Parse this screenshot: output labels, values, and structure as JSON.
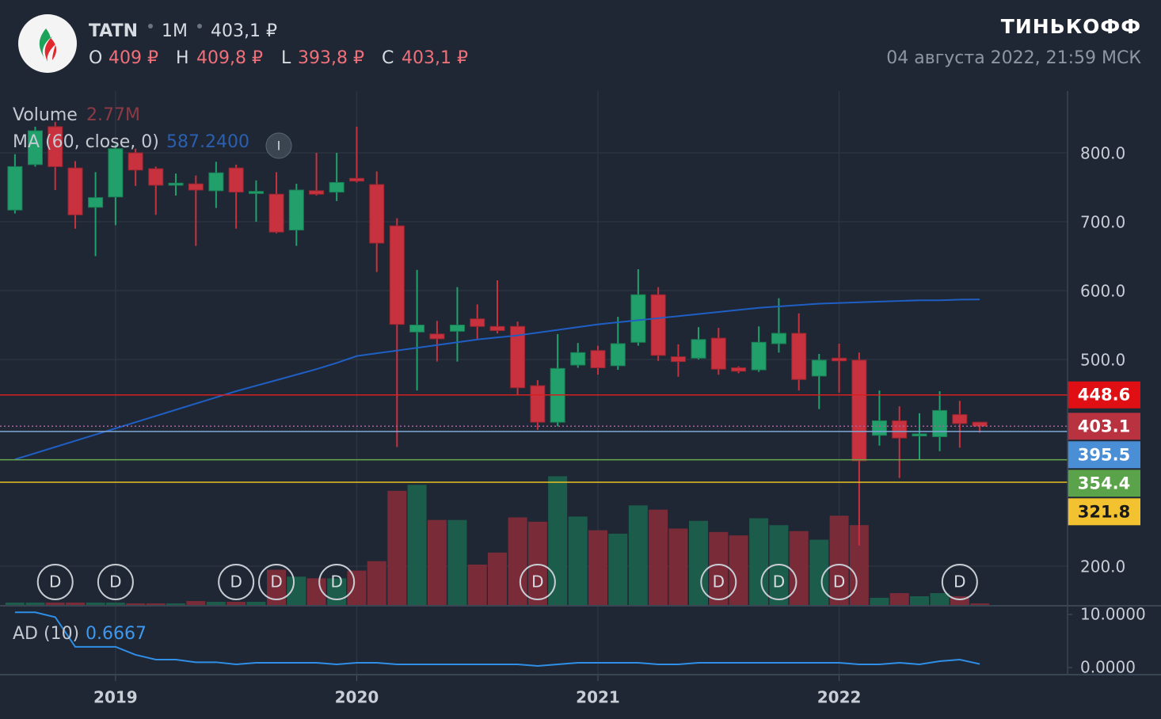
{
  "header": {
    "ticker": "TATN",
    "interval": "1M",
    "price": "403,1 ₽",
    "o_label": "O",
    "o": "409 ₽",
    "h_label": "H",
    "h": "409,8 ₽",
    "l_label": "L",
    "l": "393,8 ₽",
    "c_label": "C",
    "c": "403,1 ₽",
    "brand": "ТИНЬКОФФ",
    "date": "04 августа 2022, 21:59 МСК"
  },
  "info": "I",
  "chart_data": [
    {
      "type": "candlestick",
      "x": [
        2018.583,
        2018.667,
        2018.75,
        2018.833,
        2018.917,
        2019,
        2019.083,
        2019.167,
        2019.25,
        2019.333,
        2019.417,
        2019.5,
        2019.583,
        2019.667,
        2019.75,
        2019.833,
        2019.917,
        2020,
        2020.083,
        2020.167,
        2020.25,
        2020.333,
        2020.417,
        2020.5,
        2020.583,
        2020.667,
        2020.75,
        2020.833,
        2020.917,
        2021,
        2021.083,
        2021.167,
        2021.25,
        2021.333,
        2021.417,
        2021.5,
        2021.583,
        2021.667,
        2021.75,
        2021.833,
        2021.917,
        2022,
        2022.083,
        2022.167,
        2022.25,
        2022.333,
        2022.417,
        2022.5,
        2022.583
      ],
      "open": [
        717,
        783,
        838,
        778,
        721,
        736,
        800,
        777,
        753,
        755,
        745,
        778,
        741,
        740,
        688,
        745,
        743,
        763,
        754,
        694,
        540,
        537,
        541,
        559,
        548,
        548,
        462,
        409,
        492,
        513,
        491,
        525,
        594,
        504,
        502,
        531,
        488,
        485,
        523,
        538,
        476,
        502,
        499,
        390,
        411,
        389,
        388,
        420,
        409
      ],
      "high": [
        798,
        838,
        845,
        788,
        772,
        812,
        806,
        780,
        770,
        767,
        787,
        783,
        760,
        772,
        755,
        800,
        800,
        838,
        773,
        705,
        630,
        556,
        605,
        580,
        615,
        555,
        470,
        537,
        524,
        520,
        562,
        631,
        605,
        522,
        547,
        546,
        490,
        548,
        589,
        567,
        508,
        523,
        510,
        455,
        432,
        422,
        454,
        440,
        409.8
      ],
      "low": [
        712,
        780,
        746,
        690,
        650,
        695,
        752,
        710,
        738,
        665,
        720,
        690,
        700,
        683,
        665,
        738,
        730,
        757,
        627,
        373,
        455,
        497,
        497,
        530,
        538,
        448,
        398,
        403,
        488,
        478,
        485,
        520,
        498,
        475,
        500,
        478,
        480,
        482,
        510,
        455,
        428,
        452,
        230,
        375,
        328,
        355,
        367,
        372,
        393.8
      ],
      "close": [
        780,
        832,
        780,
        710,
        735,
        806,
        775,
        753,
        756,
        746,
        771,
        743,
        744,
        685,
        746,
        740,
        757,
        759,
        669,
        551,
        550,
        530,
        550,
        548,
        542,
        459,
        409,
        487,
        510,
        488,
        523,
        594,
        506,
        497,
        529,
        486,
        483,
        525,
        538,
        471,
        499,
        498,
        353,
        411,
        386,
        392,
        426,
        407,
        403.1
      ],
      "up_color": "#22a06b",
      "down_color": "#c8323f",
      "xlim": [
        2018.521,
        2022.947
      ],
      "xticks": [
        2019,
        2020,
        2021,
        2022
      ],
      "ylim": [
        142.5,
        889.7
      ],
      "yticks": [
        {
          "value": 200,
          "label": "200.0"
        },
        {
          "value": 500,
          "label": "500.0"
        },
        {
          "value": 600,
          "label": "600.0"
        },
        {
          "value": 700,
          "label": "700.0"
        },
        {
          "value": 800,
          "label": "800.0"
        }
      ],
      "grid": true,
      "y2lim": [
        0,
        600
      ],
      "series": [
        {
          "name": "Volume",
          "axis": "y2",
          "up_color": "#1c5c4a",
          "down_color": "#7a2b38",
          "value_label": "2.77M",
          "values": [
            3.7,
            3.7,
            3.7,
            3.7,
            3.7,
            3.7,
            2.8,
            2.8,
            2.8,
            5.5,
            4.6,
            4.6,
            4.6,
            42,
            34,
            32,
            32,
            41,
            52,
            134,
            141,
            100,
            100,
            48,
            62,
            103,
            98,
            151,
            104,
            88,
            84,
            117,
            112,
            90,
            99,
            86,
            82,
            102,
            94,
            87,
            77,
            105,
            94,
            9.3,
            14.8,
            11.1,
            14.8,
            11.1,
            2.77
          ]
        },
        {
          "name": "MA (60, close, 0)",
          "color": "#1f5fc4",
          "value_label": "587.2400",
          "values": [
            355,
            364,
            373,
            382,
            391,
            400,
            409,
            418,
            427,
            436,
            445,
            454,
            462,
            470,
            478,
            486,
            495,
            505,
            509,
            513,
            517,
            521,
            525,
            529,
            532,
            535,
            539,
            543,
            547,
            551,
            554,
            557,
            560,
            563,
            566,
            569,
            572,
            575,
            577,
            579,
            581,
            582,
            583,
            584,
            585,
            586,
            586,
            587,
            587.24
          ]
        }
      ],
      "events": [
        null,
        null,
        "D",
        null,
        null,
        "D",
        null,
        null,
        null,
        null,
        null,
        "D",
        null,
        "D",
        null,
        null,
        "D",
        null,
        null,
        null,
        null,
        null,
        null,
        null,
        null,
        null,
        "D",
        null,
        null,
        null,
        null,
        null,
        null,
        null,
        null,
        "D",
        null,
        null,
        "D",
        null,
        null,
        "D",
        null,
        null,
        null,
        null,
        null,
        "D",
        null
      ],
      "price_line_color": "#b8323f",
      "levels": [
        {
          "value": 448.6,
          "color": "#d42020",
          "label_color": "#e00f14"
        },
        {
          "value": 395.5,
          "color": "#7fa8d6",
          "label_color": "#4a8fd6"
        },
        {
          "value": 354.4,
          "color": "#67a84e",
          "label_color": "#5ba34a"
        },
        {
          "value": 321.8,
          "color": "#e8c21f",
          "label_color": "#f2c230"
        }
      ]
    },
    {
      "type": "line",
      "series": [
        {
          "name": "AD (10)",
          "color": "#2f8ee5",
          "values": [
            10.4,
            10.4,
            9.5,
            3.9,
            3.9,
            3.9,
            2.4,
            1.5,
            1.5,
            1.0,
            1.0,
            0.6,
            0.9,
            0.9,
            0.9,
            0.9,
            0.6,
            0.9,
            0.9,
            0.6,
            0.6,
            0.6,
            0.6,
            0.6,
            0.6,
            0.6,
            0.3,
            0.6,
            0.9,
            0.9,
            0.9,
            0.9,
            0.6,
            0.6,
            0.9,
            0.9,
            0.9,
            0.9,
            0.9,
            0.9,
            0.9,
            0.9,
            0.6,
            0.6,
            0.9,
            0.6,
            1.2,
            1.5,
            0.6667
          ]
        }
      ],
      "ylim": [
        -1.34,
        11.64
      ],
      "yticks": [
        {
          "value": 10,
          "label": "10.0000"
        },
        {
          "value": 0,
          "label": "0.0000"
        }
      ]
    }
  ]
}
